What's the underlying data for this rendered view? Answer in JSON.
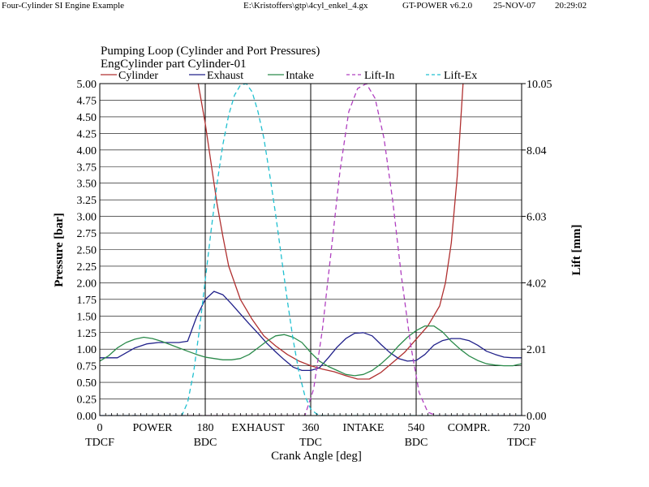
{
  "header": {
    "title": "Four-Cylinder SI Engine Example",
    "file": "E:\\Kristoffers\\gtp\\4cyl_enkel_4.gx",
    "version": "GT-POWER v6.2.0",
    "date": "25-NOV-07",
    "time": "20:29:02"
  },
  "chart_data": {
    "type": "line",
    "title": "Pumping Loop (Cylinder and Port Pressures)",
    "subtitle": "EngCylinder part Cylinder-01",
    "xlabel": "Crank Angle [deg]",
    "ylabel": "Pressure [bar]",
    "y2label": "Lift [mm]",
    "xlim": [
      0,
      720
    ],
    "ylim": [
      0,
      5
    ],
    "y2lim": [
      0,
      10.05
    ],
    "grid": true,
    "legend_position": "top",
    "x_ticks": [
      0,
      180,
      360,
      540,
      720
    ],
    "x_phase_labels": [
      {
        "x": 90,
        "label": "POWER"
      },
      {
        "x": 270,
        "label": "EXHAUST"
      },
      {
        "x": 450,
        "label": "INTAKE"
      },
      {
        "x": 630,
        "label": "COMPR."
      }
    ],
    "x_sub_labels": [
      {
        "x": 0,
        "label": "TDCF"
      },
      {
        "x": 180,
        "label": "BDC"
      },
      {
        "x": 360,
        "label": "TDC"
      },
      {
        "x": 540,
        "label": "BDC"
      },
      {
        "x": 720,
        "label": "TDCF"
      }
    ],
    "y_ticks": [
      0.0,
      0.25,
      0.5,
      0.75,
      1.0,
      1.25,
      1.5,
      1.75,
      2.0,
      2.25,
      2.5,
      2.75,
      3.0,
      3.25,
      3.5,
      3.75,
      4.0,
      4.25,
      4.5,
      4.75,
      5.0
    ],
    "y2_ticks": [
      0.0,
      2.01,
      4.02,
      6.03,
      8.04,
      10.05
    ],
    "series": [
      {
        "name": "Cylinder",
        "axis": "left",
        "color": "#b03030",
        "dash": "none",
        "x": [
          168,
          180,
          190,
          200,
          210,
          220,
          240,
          260,
          280,
          300,
          320,
          340,
          360,
          380,
          400,
          420,
          440,
          460,
          480,
          500,
          520,
          540,
          560,
          580,
          590,
          600,
          610,
          620
        ],
        "y": [
          5.0,
          4.4,
          3.8,
          3.2,
          2.7,
          2.25,
          1.75,
          1.45,
          1.2,
          1.05,
          0.92,
          0.82,
          0.75,
          0.7,
          0.66,
          0.6,
          0.55,
          0.55,
          0.65,
          0.8,
          0.95,
          1.15,
          1.35,
          1.65,
          2.0,
          2.6,
          3.6,
          5.0
        ]
      },
      {
        "name": "Exhaust",
        "axis": "left",
        "color": "#20208a",
        "dash": "none",
        "x": [
          0,
          30,
          60,
          80,
          100,
          120,
          135,
          150,
          165,
          180,
          195,
          210,
          225,
          240,
          255,
          270,
          285,
          300,
          315,
          330,
          345,
          360,
          375,
          390,
          405,
          420,
          435,
          450,
          465,
          480,
          495,
          510,
          525,
          540,
          555,
          570,
          585,
          600,
          615,
          630,
          645,
          660,
          675,
          690,
          705,
          720
        ],
        "y": [
          0.87,
          0.87,
          1.02,
          1.08,
          1.1,
          1.1,
          1.1,
          1.12,
          1.48,
          1.75,
          1.87,
          1.82,
          1.68,
          1.53,
          1.38,
          1.24,
          1.09,
          0.96,
          0.84,
          0.73,
          0.68,
          0.68,
          0.72,
          0.87,
          1.03,
          1.16,
          1.24,
          1.25,
          1.2,
          1.07,
          0.95,
          0.86,
          0.82,
          0.83,
          0.92,
          1.06,
          1.13,
          1.16,
          1.16,
          1.13,
          1.06,
          0.97,
          0.92,
          0.88,
          0.87,
          0.87
        ]
      },
      {
        "name": "Intake",
        "axis": "left",
        "color": "#2a8a4a",
        "dash": "none",
        "x": [
          0,
          15,
          30,
          45,
          60,
          75,
          90,
          105,
          120,
          135,
          150,
          165,
          180,
          195,
          210,
          225,
          240,
          255,
          270,
          285,
          300,
          315,
          330,
          345,
          360,
          375,
          390,
          405,
          420,
          435,
          450,
          465,
          480,
          495,
          510,
          525,
          540,
          555,
          570,
          585,
          600,
          615,
          630,
          645,
          660,
          675,
          690,
          705,
          720
        ],
        "y": [
          0.82,
          0.9,
          1.02,
          1.1,
          1.15,
          1.18,
          1.16,
          1.12,
          1.07,
          1.02,
          0.97,
          0.92,
          0.88,
          0.86,
          0.84,
          0.84,
          0.86,
          0.92,
          1.02,
          1.12,
          1.2,
          1.22,
          1.18,
          1.1,
          0.95,
          0.82,
          0.74,
          0.68,
          0.62,
          0.6,
          0.62,
          0.68,
          0.78,
          0.9,
          1.05,
          1.18,
          1.28,
          1.35,
          1.35,
          1.26,
          1.12,
          1.0,
          0.9,
          0.83,
          0.78,
          0.76,
          0.75,
          0.75,
          0.78
        ]
      },
      {
        "name": "Lift-In",
        "axis": "right",
        "color": "#b040c0",
        "dash": "6,4",
        "x": [
          0,
          350,
          365,
          380,
          395,
          410,
          425,
          440,
          455,
          470,
          485,
          500,
          515,
          530,
          545,
          560,
          575,
          720
        ],
        "y": [
          0.0,
          0.0,
          0.8,
          2.6,
          5.0,
          7.4,
          9.2,
          9.9,
          10.05,
          9.6,
          8.4,
          6.5,
          4.2,
          2.2,
          0.7,
          0.1,
          0.0,
          0.0
        ]
      },
      {
        "name": "Lift-Ex",
        "axis": "right",
        "color": "#20c0d0",
        "dash": "6,4",
        "x": [
          0,
          140,
          150,
          160,
          170,
          180,
          190,
          200,
          210,
          220,
          230,
          240,
          250,
          260,
          270,
          280,
          290,
          300,
          310,
          320,
          330,
          340,
          350,
          360,
          370,
          380,
          390,
          720
        ],
        "y": [
          0.0,
          0.0,
          0.4,
          1.3,
          2.6,
          4.1,
          5.6,
          7.0,
          8.2,
          9.1,
          9.7,
          10.0,
          10.05,
          9.8,
          9.2,
          8.4,
          7.3,
          6.1,
          4.8,
          3.5,
          2.3,
          1.3,
          0.6,
          0.2,
          0.05,
          0.0,
          0.0,
          0.0
        ]
      }
    ]
  }
}
